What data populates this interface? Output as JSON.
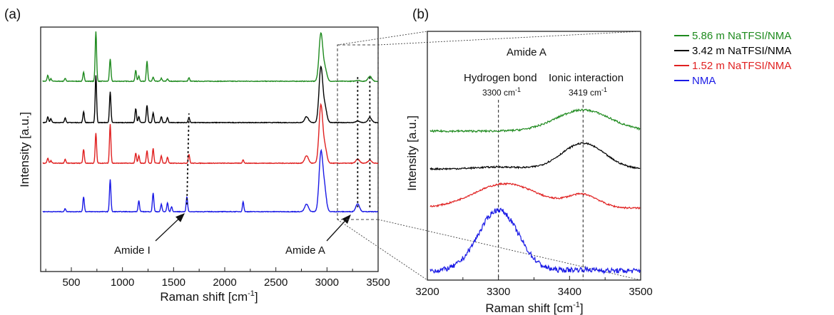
{
  "chart_data": [
    {
      "panel_label": "(a)",
      "type": "line",
      "xlabel": "Raman shift [cm",
      "xlabel_sup": "-1",
      "xlabel_end": "]",
      "ylabel": "Intensity [a.u.]",
      "xlim": [
        200,
        3500
      ],
      "xticks": [
        500,
        1000,
        1500,
        2000,
        2500,
        3000,
        3500
      ],
      "y_ticks_shown": false,
      "grid": false,
      "series": [
        {
          "name": "5.86 m NaTFSI/NMA",
          "color": "#1e8a1e",
          "offset": 3,
          "peaks": [
            [
              270,
              0.12
            ],
            [
              300,
              0.05
            ],
            [
              440,
              0.06
            ],
            [
              620,
              0.18
            ],
            [
              740,
              1.0
            ],
            [
              880,
              0.45
            ],
            [
              1130,
              0.22
            ],
            [
              1160,
              0.1
            ],
            [
              1240,
              0.4
            ],
            [
              1300,
              0.08
            ],
            [
              1380,
              0.06
            ],
            [
              1440,
              0.05
            ],
            [
              1650,
              0.07
            ],
            [
              2940,
              0.95
            ],
            [
              2980,
              0.25
            ],
            [
              3300,
              0.02
            ],
            [
              3419,
              0.1
            ]
          ]
        },
        {
          "name": "3.42 m NaTFSI/NMA",
          "color": "#000000",
          "offset": 2,
          "peaks": [
            [
              270,
              0.12
            ],
            [
              300,
              0.08
            ],
            [
              440,
              0.1
            ],
            [
              620,
              0.22
            ],
            [
              740,
              0.95
            ],
            [
              880,
              0.62
            ],
            [
              1130,
              0.28
            ],
            [
              1160,
              0.12
            ],
            [
              1240,
              0.35
            ],
            [
              1300,
              0.2
            ],
            [
              1380,
              0.12
            ],
            [
              1440,
              0.1
            ],
            [
              1650,
              0.1
            ],
            [
              2800,
              0.12
            ],
            [
              2940,
              1.1
            ],
            [
              2980,
              0.3
            ],
            [
              3300,
              0.03
            ],
            [
              3419,
              0.1
            ]
          ]
        },
        {
          "name": "1.52 m NaTFSI/NMA",
          "color": "#e02020",
          "offset": 1,
          "peaks": [
            [
              270,
              0.1
            ],
            [
              300,
              0.05
            ],
            [
              440,
              0.08
            ],
            [
              620,
              0.28
            ],
            [
              740,
              0.6
            ],
            [
              880,
              0.78
            ],
            [
              1130,
              0.2
            ],
            [
              1160,
              0.15
            ],
            [
              1240,
              0.25
            ],
            [
              1300,
              0.3
            ],
            [
              1380,
              0.15
            ],
            [
              1440,
              0.12
            ],
            [
              1650,
              0.18
            ],
            [
              2180,
              0.07
            ],
            [
              2800,
              0.15
            ],
            [
              2940,
              1.15
            ],
            [
              2980,
              0.3
            ],
            [
              3300,
              0.08
            ],
            [
              3419,
              0.06
            ]
          ]
        },
        {
          "name": "NMA",
          "color": "#1a1ae6",
          "offset": 0,
          "peaks": [
            [
              440,
              0.06
            ],
            [
              620,
              0.3
            ],
            [
              880,
              0.65
            ],
            [
              1160,
              0.22
            ],
            [
              1300,
              0.38
            ],
            [
              1380,
              0.15
            ],
            [
              1440,
              0.18
            ],
            [
              1480,
              0.1
            ],
            [
              1630,
              0.3
            ],
            [
              2180,
              0.2
            ],
            [
              2800,
              0.15
            ],
            [
              2940,
              1.15
            ],
            [
              2975,
              0.45
            ],
            [
              3300,
              0.16
            ]
          ]
        }
      ],
      "annotations": [
        "Amide I",
        "Amide A"
      ]
    },
    {
      "panel_label": "(b)",
      "type": "line",
      "title": "Amide A",
      "xlabel": "Raman shift [cm",
      "xlabel_sup": "-1",
      "xlabel_end": "]",
      "ylabel": "Intensity [a.u.]",
      "xlim": [
        3200,
        3500
      ],
      "xticks": [
        3200,
        3300,
        3400,
        3500
      ],
      "y_ticks_shown": false,
      "grid": false,
      "vlines": [
        {
          "x": 3300,
          "label": "Hydrogen bond",
          "value_label": "3300 cm",
          "value_sup": "-1"
        },
        {
          "x": 3419,
          "label": "Ionic interaction",
          "value_label": "3419 cm",
          "value_sup": "-1"
        }
      ],
      "series": [
        {
          "name": "5.86 m NaTFSI/NMA",
          "color": "#1e8a1e",
          "offset": 3,
          "peaks": [
            [
              3300,
              0.0,
              30
            ],
            [
              3419,
              0.33,
              38
            ]
          ],
          "noise": 0.03
        },
        {
          "name": "3.42 m NaTFSI/NMA",
          "color": "#000000",
          "offset": 2,
          "peaks": [
            [
              3300,
              0.03,
              30
            ],
            [
              3419,
              0.4,
              30
            ]
          ],
          "noise": 0.025
        },
        {
          "name": "1.52 m NaTFSI/NMA",
          "color": "#e02020",
          "offset": 1,
          "peaks": [
            [
              3310,
              0.38,
              45
            ],
            [
              3419,
              0.2,
              22
            ]
          ],
          "noise": 0.025
        },
        {
          "name": "NMA",
          "color": "#1a1ae6",
          "offset": 0,
          "peaks": [
            [
              3300,
              0.95,
              28
            ],
            [
              3419,
              0.02,
              20
            ]
          ],
          "noise": 0.08
        }
      ]
    }
  ],
  "legend": {
    "placement": "top-right",
    "items": [
      {
        "label": "5.86 m NaTFSI/NMA",
        "color": "#1e8a1e"
      },
      {
        "label": "3.42 m NaTFSI/NMA",
        "color": "#000000"
      },
      {
        "label": "1.52 m NaTFSI/NMA",
        "color": "#e02020"
      },
      {
        "label": "NMA",
        "color": "#1a1ae6"
      }
    ]
  }
}
